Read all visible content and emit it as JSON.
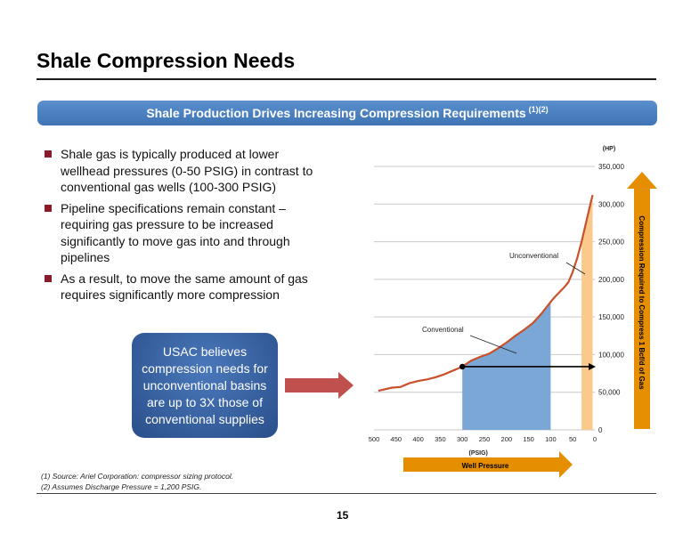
{
  "page": {
    "title": "Shale Compression Needs",
    "banner_text": "Shale Production Drives Increasing Compression Requirements",
    "banner_sup": "(1)(2)",
    "bullets": [
      "Shale gas is typically produced at lower wellhead pressures (0-50 PSIG) in contrast to conventional gas wells (100-300 PSIG)",
      "Pipeline specifications remain constant – requiring gas pressure to be increased significantly to move gas into and through pipelines",
      "As a result, to move the same amount of gas requires significantly more compression"
    ],
    "callout": "USAC believes compression needs for unconventional basins are up to 3X those of conventional supplies",
    "footnotes": [
      "(1)   Source: Ariel Corporation: compressor sizing protocol.",
      "(2)   Assumes Discharge Pressure = 1,200 PSIG."
    ],
    "page_number": "15"
  },
  "colors": {
    "banner": "#4f86c6",
    "bullet_marker": "#8b1a2b",
    "callout": "#2f5a97",
    "arrow_red": "#c0504d",
    "arrow_orange": "#e58f00",
    "curve": "#c8502a",
    "conventional_fill": "#7ba7d6",
    "unconventional_fill": "#fbc98c"
  },
  "chart_data": {
    "type": "area",
    "x_label": "(PSIG)",
    "y_label": "(HP)",
    "x_reversed": true,
    "xlim": [
      500,
      0
    ],
    "ylim": [
      0,
      350000
    ],
    "x_ticks": [
      500,
      450,
      400,
      350,
      300,
      250,
      200,
      150,
      100,
      50,
      0
    ],
    "x_tick_labels": [
      "500",
      "450",
      "400",
      "350",
      "300",
      "250",
      "200",
      "150",
      "100",
      "50",
      "0"
    ],
    "y_ticks": [
      0,
      50000,
      100000,
      150000,
      200000,
      250000,
      300000,
      350000
    ],
    "y_tick_labels": [
      "0",
      "50,000",
      "100,000",
      "150,000",
      "200,000",
      "250,000",
      "300,000",
      "350,000"
    ],
    "grid": true,
    "series": [
      {
        "x": [
          490,
          460,
          440,
          420,
          400,
          380,
          360,
          340,
          320,
          300,
          280,
          260,
          240,
          220,
          200,
          180,
          160,
          140,
          120,
          100,
          90,
          80,
          70,
          60,
          50,
          40,
          30,
          20,
          10,
          5
        ],
        "values": [
          52000,
          56000,
          57000,
          62000,
          65000,
          67000,
          70000,
          74000,
          79000,
          84000,
          92000,
          97000,
          101000,
          108000,
          116000,
          125000,
          133000,
          142000,
          155000,
          170000,
          177000,
          183000,
          189000,
          196000,
          210000,
          228000,
          250000,
          275000,
          300000,
          312000
        ]
      }
    ],
    "conventional_range": [
      300,
      100
    ],
    "unconventional_range": [
      30,
      5
    ],
    "labels": {
      "conventional": "Conventional",
      "unconventional": "Unconventional"
    },
    "marker": {
      "x": 300,
      "y": 84000
    },
    "arrow_y": 84000,
    "right_axis_label": "Compression Required to Compress 1 Bcf/d of Gas",
    "bottom_arrow_label": "Well Pressure"
  }
}
